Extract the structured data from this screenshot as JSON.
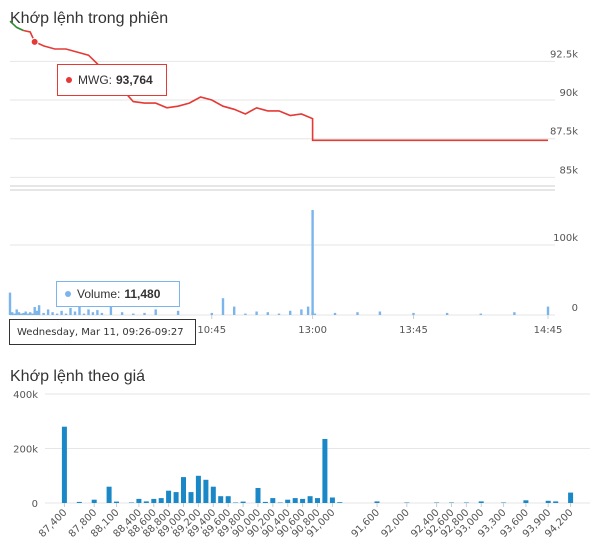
{
  "colors": {
    "price_up": "#2e8b2e",
    "price_down": "#e53935",
    "volume": "#7cb5ec",
    "match_volume": "#1a87c6",
    "grid": "#e6e6e6"
  },
  "titles": {
    "session": "Khớp lệnh trong phiên",
    "by_price": "Khớp lệnh theo giá"
  },
  "tooltip": {
    "price_series": "MWG:",
    "price_value": "93,764",
    "volume_series": "Volume:",
    "volume_value": "11,480",
    "time_range": "Wednesday, Mar 11, 09:26-09:27"
  },
  "chart_data": [
    {
      "type": "line",
      "series": [
        {
          "name": "MWG"
        }
      ],
      "x_ticks": [
        "10:45",
        "13:00",
        "13:45",
        "14:45"
      ],
      "y_ticks": [
        "85k",
        "87.5k",
        "90k",
        "92.5k"
      ],
      "ylim": [
        84700,
        95500
      ],
      "x": [
        "09:15",
        "09:18",
        "09:21",
        "09:24",
        "09:26",
        "09:30",
        "09:35",
        "09:40",
        "09:45",
        "09:50",
        "09:55",
        "10:00",
        "10:05",
        "10:10",
        "10:15",
        "10:20",
        "10:25",
        "10:30",
        "10:35",
        "10:40",
        "10:45",
        "10:50",
        "10:55",
        "11:00",
        "11:05",
        "11:10",
        "11:15",
        "11:20",
        "11:25",
        "11:30",
        "13:00",
        "13:30",
        "14:00",
        "14:30",
        "14:45"
      ],
      "y": [
        95100,
        94700,
        94500,
        94400,
        93764,
        93500,
        93300,
        93300,
        93100,
        92900,
        92200,
        91300,
        90700,
        89900,
        89800,
        89800,
        89500,
        89600,
        89800,
        90200,
        90000,
        89600,
        89400,
        89100,
        89500,
        89300,
        89300,
        89000,
        89100,
        88800,
        87400,
        87400,
        87400,
        87400,
        87400
      ],
      "grid": true
    },
    {
      "type": "bar",
      "series": [
        {
          "name": "Volume"
        }
      ],
      "x_ticks": [
        "10:45",
        "13:00",
        "13:45",
        "14:45"
      ],
      "y_ticks": [
        "0",
        "100k"
      ],
      "ylim": [
        0,
        150000
      ],
      "x": [
        "09:15",
        "09:16",
        "09:17",
        "09:18",
        "09:19",
        "09:20",
        "09:21",
        "09:22",
        "09:23",
        "09:24",
        "09:25",
        "09:26",
        "09:27",
        "09:28",
        "09:30",
        "09:32",
        "09:34",
        "09:36",
        "09:38",
        "09:40",
        "09:42",
        "09:44",
        "09:46",
        "09:48",
        "09:50",
        "09:52",
        "09:54",
        "09:56",
        "10:00",
        "10:05",
        "10:10",
        "10:15",
        "10:20",
        "10:30",
        "10:45",
        "10:50",
        "10:55",
        "11:00",
        "11:05",
        "11:10",
        "11:15",
        "11:20",
        "11:25",
        "11:28",
        "11:30",
        "13:00",
        "13:01",
        "13:10",
        "13:20",
        "13:30",
        "13:45",
        "14:00",
        "14:15",
        "14:30",
        "14:45"
      ],
      "values": [
        32000,
        4000,
        2000,
        8000,
        4000,
        2000,
        3000,
        5000,
        2000,
        4000,
        2000,
        11480,
        6000,
        14000,
        3000,
        8000,
        4000,
        2000,
        6000,
        2000,
        10000,
        5000,
        36000,
        2000,
        8000,
        4000,
        7000,
        3000,
        30000,
        4000,
        2000,
        3000,
        8000,
        6000,
        3000,
        24000,
        12000,
        2000,
        5000,
        4000,
        2000,
        6000,
        8000,
        12000,
        4000,
        150000,
        2000,
        3000,
        4000,
        5000,
        3000,
        3000,
        2000,
        4000,
        12000
      ]
    },
    {
      "type": "bar",
      "categories": [
        "87,400",
        "87,600",
        "87,800",
        "88,000",
        "88,100",
        "88,300",
        "88,400",
        "88,500",
        "88,600",
        "88,700",
        "88,800",
        "88,900",
        "89,000",
        "89,100",
        "89,200",
        "89,300",
        "89,400",
        "89,500",
        "89,600",
        "89,700",
        "89,800",
        "90,000",
        "90,100",
        "90,200",
        "90,300",
        "90,400",
        "90,500",
        "90,600",
        "90,700",
        "90,800",
        "90,900",
        "91,000",
        "91,100",
        "91,600",
        "92,000",
        "92,400",
        "92,600",
        "92,800",
        "93,000",
        "93,300",
        "93,600",
        "93,900",
        "94,000",
        "94,200"
      ],
      "values": [
        280000,
        4000,
        12000,
        60000,
        5000,
        2000,
        15000,
        6000,
        15000,
        18000,
        45000,
        40000,
        95000,
        40000,
        100000,
        85000,
        60000,
        25000,
        25000,
        2000,
        5000,
        55000,
        4000,
        18000,
        2000,
        12000,
        18000,
        15000,
        25000,
        18000,
        235000,
        20000,
        3000,
        6000,
        2000,
        2000,
        2000,
        2000,
        6000,
        2000,
        10000,
        8000,
        6000,
        38000
      ],
      "x_ticks": [
        "87,400",
        "87,800",
        "88,100",
        "88,400",
        "88,600",
        "88,800",
        "89,000",
        "89,200",
        "89,400",
        "89,600",
        "89,800",
        "90,000",
        "90,200",
        "90,400",
        "90,600",
        "90,800",
        "91,000",
        "91,600",
        "92,000",
        "92,400",
        "92,600",
        "92,800",
        "93,000",
        "93,300",
        "93,600",
        "93,900",
        "94,200"
      ],
      "y_ticks": [
        "0",
        "200k",
        "400k"
      ],
      "ylim": [
        0,
        400000
      ],
      "grid": true
    }
  ]
}
